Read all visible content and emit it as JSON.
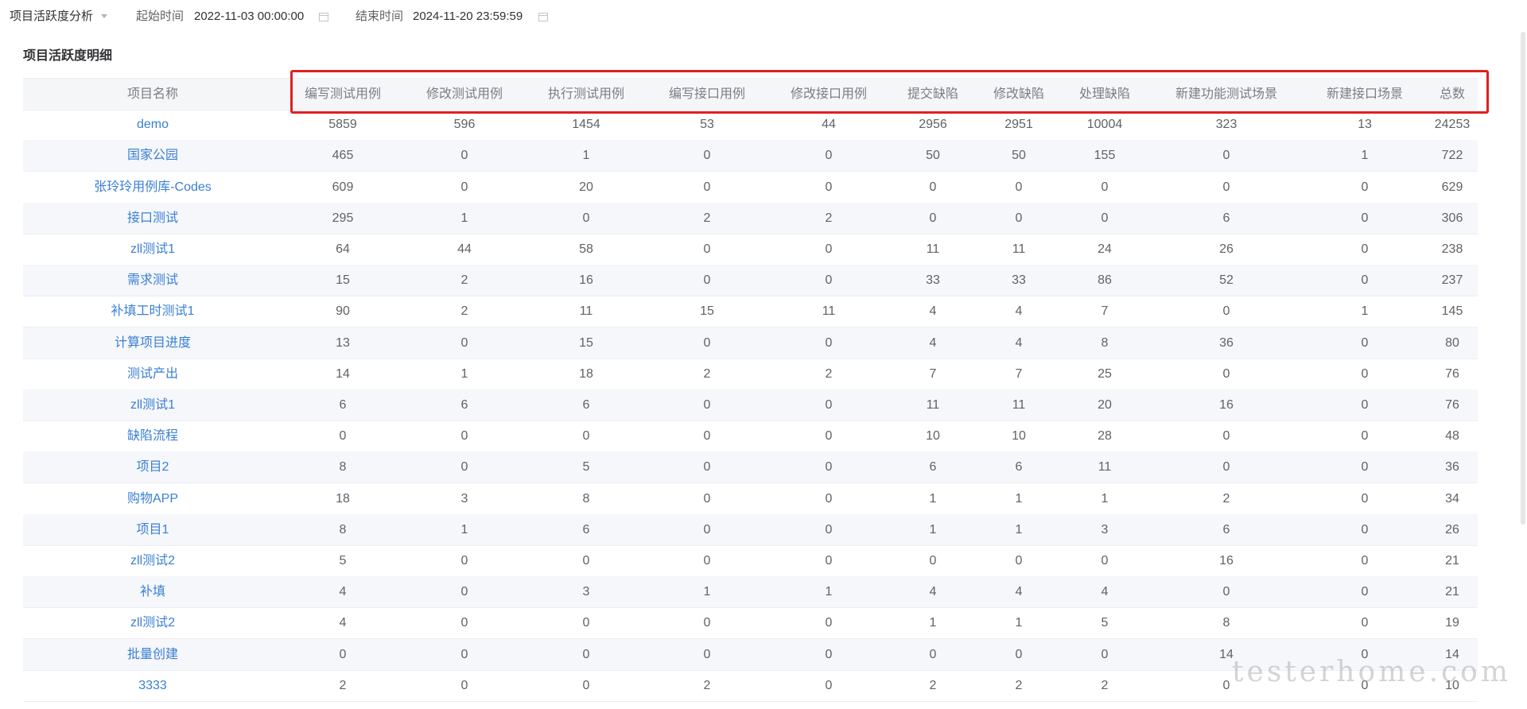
{
  "header": {
    "title": "项目活跃度分析",
    "start_label": "起始时间",
    "start_value": "2022-11-03 00:00:00",
    "end_label": "结束时间",
    "end_value": "2024-11-20 23:59:59"
  },
  "section_title": "项目活跃度明细",
  "table": {
    "columns": [
      "项目名称",
      "编写测试用例",
      "修改测试用例",
      "执行测试用例",
      "编写接口用例",
      "修改接口用例",
      "提交缺陷",
      "修改缺陷",
      "处理缺陷",
      "新建功能测试场景",
      "新建接口场景",
      "总数"
    ],
    "rows": [
      [
        "demo",
        5859,
        596,
        1454,
        53,
        44,
        2956,
        2951,
        10004,
        323,
        13,
        24253
      ],
      [
        "国家公园",
        465,
        0,
        1,
        0,
        0,
        50,
        50,
        155,
        0,
        1,
        722
      ],
      [
        "张玲玲用例库-Codes",
        609,
        0,
        20,
        0,
        0,
        0,
        0,
        0,
        0,
        0,
        629
      ],
      [
        "接口测试",
        295,
        1,
        0,
        2,
        2,
        0,
        0,
        0,
        6,
        0,
        306
      ],
      [
        "zll测试1",
        64,
        44,
        58,
        0,
        0,
        11,
        11,
        24,
        26,
        0,
        238
      ],
      [
        "需求测试",
        15,
        2,
        16,
        0,
        0,
        33,
        33,
        86,
        52,
        0,
        237
      ],
      [
        "补填工时测试1",
        90,
        2,
        11,
        15,
        11,
        4,
        4,
        7,
        0,
        1,
        145
      ],
      [
        "计算项目进度",
        13,
        0,
        15,
        0,
        0,
        4,
        4,
        8,
        36,
        0,
        80
      ],
      [
        "测试产出",
        14,
        1,
        18,
        2,
        2,
        7,
        7,
        25,
        0,
        0,
        76
      ],
      [
        "zll测试1",
        6,
        6,
        6,
        0,
        0,
        11,
        11,
        20,
        16,
        0,
        76
      ],
      [
        "缺陷流程",
        0,
        0,
        0,
        0,
        0,
        10,
        10,
        28,
        0,
        0,
        48
      ],
      [
        "项目2",
        8,
        0,
        5,
        0,
        0,
        6,
        6,
        11,
        0,
        0,
        36
      ],
      [
        "购物APP",
        18,
        3,
        8,
        0,
        0,
        1,
        1,
        1,
        2,
        0,
        34
      ],
      [
        "项目1",
        8,
        1,
        6,
        0,
        0,
        1,
        1,
        3,
        6,
        0,
        26
      ],
      [
        "zll测试2",
        5,
        0,
        0,
        0,
        0,
        0,
        0,
        0,
        16,
        0,
        21
      ],
      [
        "补填",
        4,
        0,
        3,
        1,
        1,
        4,
        4,
        4,
        0,
        0,
        21
      ],
      [
        "zll测试2",
        4,
        0,
        0,
        0,
        0,
        1,
        1,
        5,
        8,
        0,
        19
      ],
      [
        "批量创建",
        0,
        0,
        0,
        0,
        0,
        0,
        0,
        0,
        14,
        0,
        14
      ],
      [
        "3333",
        2,
        0,
        0,
        2,
        0,
        2,
        2,
        2,
        0,
        0,
        10
      ]
    ]
  },
  "watermark": "testerhome.com"
}
